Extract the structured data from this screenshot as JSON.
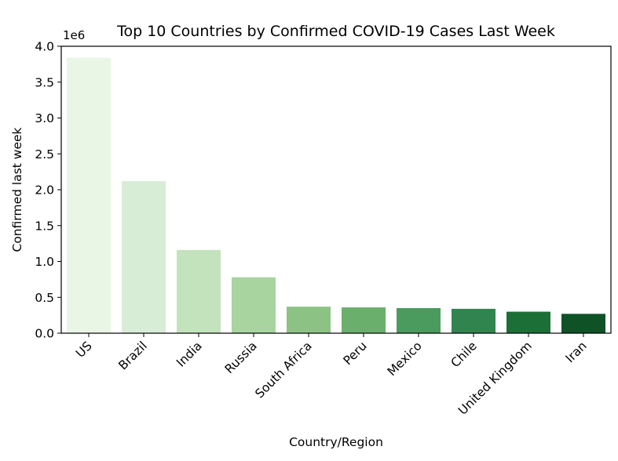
{
  "chart_data": {
    "type": "bar",
    "title": "Top 10 Countries by Confirmed COVID-19 Cases Last Week",
    "xlabel": "Country/Region",
    "ylabel": "Confirmed last week",
    "y_offset_label": "1e6",
    "y_scale": 1000000,
    "ylim": [
      0,
      4000000
    ],
    "yticks": [
      {
        "value": 0,
        "label": "0.0"
      },
      {
        "value": 500000,
        "label": "0.5"
      },
      {
        "value": 1000000,
        "label": "1.0"
      },
      {
        "value": 1500000,
        "label": "1.5"
      },
      {
        "value": 2000000,
        "label": "2.0"
      },
      {
        "value": 2500000,
        "label": "2.5"
      },
      {
        "value": 3000000,
        "label": "3.0"
      },
      {
        "value": 3500000,
        "label": "3.5"
      },
      {
        "value": 4000000,
        "label": "4.0"
      }
    ],
    "grid": false,
    "categories": [
      "US",
      "Brazil",
      "India",
      "Russia",
      "South Africa",
      "Peru",
      "Mexico",
      "Chile",
      "United Kingdom",
      "Iran"
    ],
    "values": [
      3840000,
      2120000,
      1160000,
      780000,
      370000,
      360000,
      350000,
      340000,
      300000,
      270000
    ],
    "colors": [
      "#e9f5e5",
      "#d8edd5",
      "#c2e3bc",
      "#a7d49f",
      "#8cc385",
      "#6baf6c",
      "#4a9b5d",
      "#32844f",
      "#1d6f38",
      "#0e5226"
    ]
  }
}
